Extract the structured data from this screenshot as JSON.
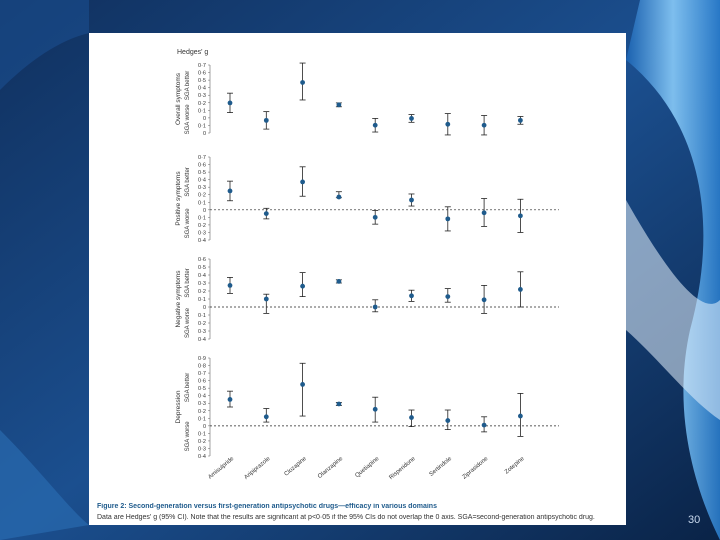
{
  "colors": {
    "point": "#1f5b8c",
    "caption_title": "#1f5b8c",
    "background": "#0b2a55"
  },
  "slide_number": "30",
  "chart_data": {
    "type": "scatter",
    "title": "Figure 2: Second-generation versus first-generation antipsychotic drugs—efficacy in various domains",
    "caption": "Data are Hedges' g (95% CI). Note that the results are significant at p<0·05 if the 95% CIs do not overlap the 0 axis. SGA=second-generation antipsychotic drug.",
    "y_axis_title": "Hedges' g",
    "categories": [
      "Amisulpride",
      "Aripiprazole",
      "Clozapine",
      "Olanzapine",
      "Quetiapine",
      "Risperidone",
      "Sertindole",
      "Ziprasidone",
      "Zotepine"
    ],
    "panels": [
      {
        "name": "Overall symptoms",
        "upper_label": "SGA better",
        "lower_label": "SGA worse",
        "ylim": [
          0,
          0.7
        ],
        "tick_labels": [
          "0·7",
          "0·6",
          "0·5",
          "0·4",
          "0·3",
          "0·2",
          "0·1",
          "0",
          "0·1",
          "0"
        ],
        "values": [
          0.31,
          0.13,
          0.52,
          0.29,
          0.08,
          0.15,
          0.09,
          0.08,
          0.13
        ],
        "ci_low": [
          0.21,
          0.04,
          0.34,
          0.27,
          0.01,
          0.11,
          -0.02,
          -0.02,
          0.09
        ],
        "ci_high": [
          0.41,
          0.22,
          0.72,
          0.31,
          0.15,
          0.19,
          0.2,
          0.18,
          0.17
        ],
        "dashed_zero": false
      },
      {
        "name": "Positive symptoms",
        "upper_label": "SGA better",
        "lower_label": "SGA worse",
        "ylim": [
          -0.4,
          0.7
        ],
        "tick_labels": [
          "0·7",
          "0·6",
          "0·5",
          "0·4",
          "0·3",
          "0·2",
          "0·1",
          "0",
          "0·1",
          "0·2",
          "0·3",
          "0·4"
        ],
        "values": [
          0.25,
          -0.05,
          0.37,
          0.17,
          -0.1,
          0.13,
          -0.12,
          -0.04,
          -0.08
        ],
        "ci_low": [
          0.12,
          -0.12,
          0.18,
          0.16,
          -0.19,
          0.05,
          -0.28,
          -0.22,
          -0.3
        ],
        "ci_high": [
          0.38,
          0.02,
          0.57,
          0.24,
          -0.01,
          0.21,
          0.04,
          0.15,
          0.14
        ],
        "dashed_zero": true
      },
      {
        "name": "Negative symptoms",
        "upper_label": "SGA better",
        "lower_label": "SGA worse",
        "ylim": [
          -0.4,
          0.6
        ],
        "tick_labels": [
          "0·6",
          "0·5",
          "0·4",
          "0·3",
          "0·2",
          "0·1",
          "0",
          "0·1",
          "0·2",
          "0·3",
          "0·4"
        ],
        "values": [
          0.27,
          0.1,
          0.26,
          0.32,
          0.0,
          0.14,
          0.13,
          0.09,
          0.22
        ],
        "ci_low": [
          0.17,
          -0.08,
          0.13,
          0.3,
          -0.06,
          0.07,
          0.06,
          -0.08,
          0.0
        ],
        "ci_high": [
          0.37,
          0.16,
          0.43,
          0.34,
          0.09,
          0.21,
          0.23,
          0.27,
          0.44
        ],
        "dashed_zero": true
      },
      {
        "name": "Depression",
        "upper_label": "SGA better",
        "lower_label": "SGA worse",
        "ylim": [
          -0.4,
          0.9
        ],
        "tick_labels": [
          "0·9",
          "0·8",
          "0·7",
          "0·6",
          "0·5",
          "0·4",
          "0·3",
          "0·2",
          "0·1",
          "0",
          "0·1",
          "0·2",
          "0·3",
          "0·4"
        ],
        "values": [
          0.35,
          0.12,
          0.55,
          0.29,
          0.22,
          0.11,
          0.07,
          0.01,
          0.13
        ],
        "ci_low": [
          0.25,
          0.05,
          0.13,
          0.27,
          0.05,
          -0.01,
          -0.05,
          -0.08,
          -0.14
        ],
        "ci_high": [
          0.46,
          0.23,
          0.83,
          0.31,
          0.38,
          0.21,
          0.21,
          0.12,
          0.43
        ],
        "dashed_zero": true
      }
    ]
  }
}
